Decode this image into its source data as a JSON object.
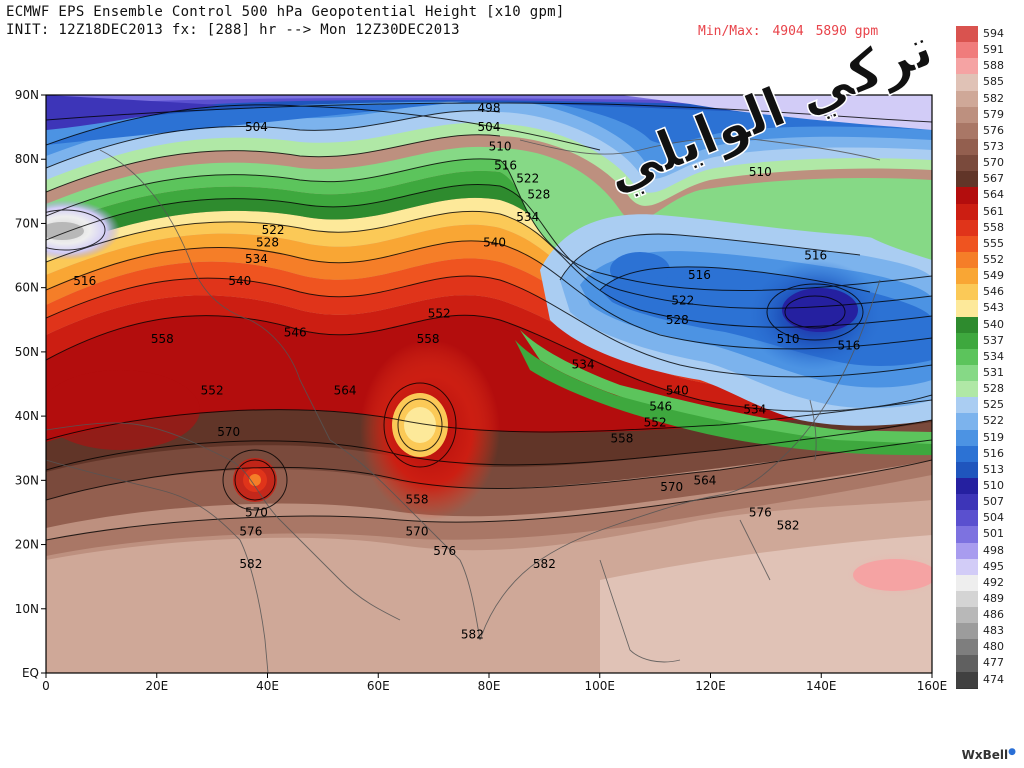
{
  "header": {
    "line1": "ECMWF EPS Ensemble Control 500 hPa Geopotential Height [x10 gpm]",
    "line2": "INIT: 12Z18DEC2013 fx: [288] hr --> Mon 12Z30DEC2013",
    "minmax_label": "Min/Max:",
    "min_value": "4904",
    "max_value": "5890 gpm"
  },
  "watermark_text": "تركي الوايلي",
  "logo": "WxBell",
  "colors": {
    "title_text": "#111111",
    "minmax_text": "#e8434a",
    "plot_border": "#000000"
  },
  "chart_data": {
    "type": "heatmap",
    "title": "ECMWF EPS Ensemble Control 500 hPa Geopotential Height [x10 gpm]",
    "x_axis": {
      "ticks": [
        "0",
        "20E",
        "40E",
        "60E",
        "80E",
        "100E",
        "120E",
        "140E",
        "160E"
      ],
      "range": [
        0,
        160
      ]
    },
    "y_axis": {
      "ticks": [
        "EQ",
        "10N",
        "20N",
        "30N",
        "40N",
        "50N",
        "60N",
        "70N",
        "80N",
        "90N"
      ],
      "range": [
        0,
        90
      ]
    },
    "colorbar": {
      "levels": [
        "594",
        "591",
        "588",
        "585",
        "582",
        "579",
        "576",
        "573",
        "570",
        "567",
        "564",
        "561",
        "558",
        "555",
        "552",
        "549",
        "546",
        "543",
        "540",
        "537",
        "534",
        "531",
        "528",
        "525",
        "522",
        "519",
        "516",
        "513",
        "510",
        "507",
        "504",
        "501",
        "498",
        "495",
        "492",
        "489",
        "486",
        "483",
        "480",
        "477",
        "474"
      ],
      "colors": [
        "#d9534f",
        "#f07c7c",
        "#f5a3a3",
        "#e0c2b6",
        "#cfa898",
        "#bd907f",
        "#a97766",
        "#935f4f",
        "#7a4a3c",
        "#613528",
        "#b30d0d",
        "#cc1e12",
        "#e0341a",
        "#ef5420",
        "#f57e28",
        "#f9a634",
        "#fbc957",
        "#fde99a",
        "#2e8b2e",
        "#3ea83e",
        "#5cc45c",
        "#86d986",
        "#b0e8a6",
        "#aacdf2",
        "#7cb3ed",
        "#4c93e3",
        "#2c72d4",
        "#1f55bd",
        "#2520a0",
        "#3d35b8",
        "#5a50cf",
        "#7d72e0",
        "#a89cef",
        "#d2ccf7",
        "#eeeeee",
        "#d4d4d4",
        "#b8b8b8",
        "#9c9c9c",
        "#7e7e7e",
        "#606060",
        "#404040"
      ]
    },
    "contour_labels": [
      {
        "text": "498",
        "lon": 80,
        "lat": 88
      },
      {
        "text": "504",
        "lon": 38,
        "lat": 85
      },
      {
        "text": "504",
        "lon": 80,
        "lat": 85
      },
      {
        "text": "510",
        "lon": 82,
        "lat": 82
      },
      {
        "text": "510",
        "lon": 129,
        "lat": 78
      },
      {
        "text": "516",
        "lon": 83,
        "lat": 79
      },
      {
        "text": "516",
        "lon": 7,
        "lat": 61
      },
      {
        "text": "516",
        "lon": 118,
        "lat": 62
      },
      {
        "text": "516",
        "lon": 139,
        "lat": 65
      },
      {
        "text": "516",
        "lon": 145,
        "lat": 51
      },
      {
        "text": "522",
        "lon": 87,
        "lat": 77
      },
      {
        "text": "522",
        "lon": 41,
        "lat": 69
      },
      {
        "text": "522",
        "lon": 115,
        "lat": 58
      },
      {
        "text": "528",
        "lon": 89,
        "lat": 74.5
      },
      {
        "text": "528",
        "lon": 40,
        "lat": 67
      },
      {
        "text": "528",
        "lon": 114,
        "lat": 55
      },
      {
        "text": "534",
        "lon": 87,
        "lat": 71
      },
      {
        "text": "534",
        "lon": 38,
        "lat": 64.5
      },
      {
        "text": "534",
        "lon": 97,
        "lat": 48
      },
      {
        "text": "534",
        "lon": 128,
        "lat": 41
      },
      {
        "text": "510",
        "lon": 134,
        "lat": 52
      },
      {
        "text": "540",
        "lon": 81,
        "lat": 67
      },
      {
        "text": "540",
        "lon": 35,
        "lat": 61
      },
      {
        "text": "540",
        "lon": 114,
        "lat": 44
      },
      {
        "text": "546",
        "lon": 45,
        "lat": 53
      },
      {
        "text": "546",
        "lon": 111,
        "lat": 41.5
      },
      {
        "text": "552",
        "lon": 71,
        "lat": 56
      },
      {
        "text": "552",
        "lon": 30,
        "lat": 44
      },
      {
        "text": "552",
        "lon": 110,
        "lat": 39
      },
      {
        "text": "558",
        "lon": 21,
        "lat": 52
      },
      {
        "text": "558",
        "lon": 69,
        "lat": 52
      },
      {
        "text": "558",
        "lon": 104,
        "lat": 36.5
      },
      {
        "text": "558",
        "lon": 67,
        "lat": 27
      },
      {
        "text": "564",
        "lon": 54,
        "lat": 44
      },
      {
        "text": "564",
        "lon": 119,
        "lat": 30
      },
      {
        "text": "570",
        "lon": 33,
        "lat": 37.5
      },
      {
        "text": "570",
        "lon": 38,
        "lat": 25
      },
      {
        "text": "570",
        "lon": 67,
        "lat": 22
      },
      {
        "text": "570",
        "lon": 113,
        "lat": 29
      },
      {
        "text": "576",
        "lon": 37,
        "lat": 22
      },
      {
        "text": "576",
        "lon": 72,
        "lat": 19
      },
      {
        "text": "576",
        "lon": 129,
        "lat": 25
      },
      {
        "text": "582",
        "lon": 37,
        "lat": 17
      },
      {
        "text": "582",
        "lon": 90,
        "lat": 17
      },
      {
        "text": "582",
        "lon": 134,
        "lat": 23
      },
      {
        "text": "582",
        "lon": 77,
        "lat": 6
      }
    ]
  }
}
